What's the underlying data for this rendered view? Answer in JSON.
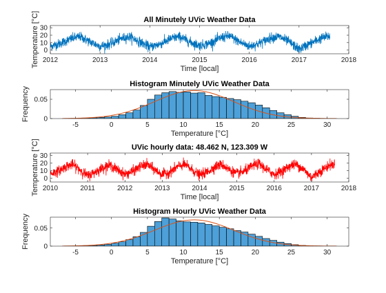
{
  "colors": {
    "minutely_line": "#0072BD",
    "hourly_line": "#FF0000",
    "histogram_bar": "#4DA0D8",
    "fit_curve": "#D95319",
    "axes": "#262626"
  },
  "chart_data": [
    {
      "type": "line",
      "title": "All Minutely UVic Weather Data",
      "xlabel": "Time [local]",
      "ylabel": "Temperature [°C]",
      "xlim": [
        2012,
        2018
      ],
      "ylim": [
        -5,
        33
      ],
      "xticks": [
        2012,
        2013,
        2014,
        2015,
        2016,
        2017,
        2018
      ],
      "yticks": [
        0,
        10,
        20,
        30
      ],
      "series": [
        {
          "color": "#0072BD",
          "x_start": 2012.0,
          "x_end": 2017.62,
          "seasonal_mean_points": [
            [
              2012.0,
              5
            ],
            [
              2012.2,
              9
            ],
            [
              2012.45,
              16
            ],
            [
              2012.6,
              18
            ],
            [
              2012.8,
              11
            ],
            [
              2013.0,
              5
            ],
            [
              2013.2,
              8
            ],
            [
              2013.45,
              16
            ],
            [
              2013.6,
              18
            ],
            [
              2013.8,
              11
            ],
            [
              2014.0,
              4
            ],
            [
              2014.2,
              8
            ],
            [
              2014.45,
              16
            ],
            [
              2014.6,
              18
            ],
            [
              2014.8,
              11
            ],
            [
              2015.0,
              6
            ],
            [
              2015.2,
              9
            ],
            [
              2015.45,
              17
            ],
            [
              2015.6,
              19
            ],
            [
              2015.8,
              11
            ],
            [
              2016.0,
              5
            ],
            [
              2016.2,
              9
            ],
            [
              2016.45,
              17
            ],
            [
              2016.6,
              18
            ],
            [
              2016.8,
              11
            ],
            [
              2017.0,
              1
            ],
            [
              2017.2,
              8
            ],
            [
              2017.45,
              16
            ],
            [
              2017.62,
              19
            ]
          ],
          "approx_min": -5,
          "approx_max": 32
        }
      ]
    },
    {
      "type": "bar",
      "title": "Histogram Minutely UVic Weather Data",
      "xlabel": "Temperature [°C]",
      "ylabel": "Frequency",
      "xlim": [
        -8.5,
        33
      ],
      "ylim": [
        0,
        0.075
      ],
      "xticks": [
        -5,
        0,
        5,
        10,
        15,
        20,
        25,
        30
      ],
      "yticks": [
        0,
        0.05
      ],
      "bin_width": 1,
      "bins": [
        -6,
        -5,
        -4,
        -3,
        -2,
        -1,
        0,
        1,
        2,
        3,
        4,
        5,
        6,
        7,
        8,
        9,
        10,
        11,
        12,
        13,
        14,
        15,
        16,
        17,
        18,
        19,
        20,
        21,
        22,
        23,
        24,
        25,
        26,
        27,
        28,
        29,
        30
      ],
      "values": [
        0.0005,
        0.001,
        0.0015,
        0.002,
        0.003,
        0.004,
        0.006,
        0.01,
        0.015,
        0.022,
        0.034,
        0.05,
        0.061,
        0.067,
        0.07,
        0.068,
        0.069,
        0.066,
        0.067,
        0.06,
        0.057,
        0.055,
        0.052,
        0.049,
        0.045,
        0.041,
        0.035,
        0.028,
        0.021,
        0.015,
        0.01,
        0.006,
        0.003,
        0.0015,
        0.0008,
        0.0004,
        0.0002
      ],
      "fit": {
        "type": "normal",
        "mean": 11.5,
        "std": 5.5,
        "color": "#D95319"
      }
    },
    {
      "type": "line",
      "title": "UVic hourly data: 48.462 N, 123.309 W",
      "xlabel": "Time [local]",
      "ylabel": "Temperature [°C]",
      "xlim": [
        2010,
        2018
      ],
      "ylim": [
        -5,
        33
      ],
      "xticks": [
        2010,
        2011,
        2012,
        2013,
        2014,
        2015,
        2016,
        2017,
        2018
      ],
      "yticks": [
        0,
        10,
        20,
        30
      ],
      "series": [
        {
          "color": "#FF0000",
          "x_start": 2010.0,
          "x_end": 2017.62,
          "seasonal_mean_points": [
            [
              2010.0,
              6
            ],
            [
              2010.2,
              9
            ],
            [
              2010.45,
              16
            ],
            [
              2010.6,
              18
            ],
            [
              2010.8,
              11
            ],
            [
              2011.0,
              3
            ],
            [
              2011.2,
              8
            ],
            [
              2011.45,
              15
            ],
            [
              2011.6,
              17
            ],
            [
              2011.8,
              11
            ],
            [
              2012.0,
              5
            ],
            [
              2012.2,
              9
            ],
            [
              2012.45,
              16
            ],
            [
              2012.6,
              18
            ],
            [
              2012.8,
              11
            ],
            [
              2013.0,
              5
            ],
            [
              2013.2,
              8
            ],
            [
              2013.45,
              16
            ],
            [
              2013.6,
              18
            ],
            [
              2013.8,
              11
            ],
            [
              2014.0,
              4
            ],
            [
              2014.2,
              8
            ],
            [
              2014.45,
              16
            ],
            [
              2014.6,
              18
            ],
            [
              2014.8,
              11
            ],
            [
              2015.0,
              6
            ],
            [
              2015.2,
              9
            ],
            [
              2015.45,
              17
            ],
            [
              2015.6,
              19
            ],
            [
              2015.8,
              11
            ],
            [
              2016.0,
              5
            ],
            [
              2016.2,
              9
            ],
            [
              2016.45,
              17
            ],
            [
              2016.6,
              18
            ],
            [
              2016.8,
              11
            ],
            [
              2017.0,
              1
            ],
            [
              2017.2,
              8
            ],
            [
              2017.45,
              16
            ],
            [
              2017.62,
              19
            ]
          ],
          "approx_min": -5,
          "approx_max": 32
        }
      ]
    },
    {
      "type": "bar",
      "title": "Histogram Hourly UVic Weather Data",
      "xlabel": "Temperature [°C]",
      "ylabel": "Frequency",
      "xlim": [
        -8.5,
        33
      ],
      "ylim": [
        0,
        0.08
      ],
      "xticks": [
        -5,
        0,
        5,
        10,
        15,
        20,
        25,
        30
      ],
      "yticks": [
        0,
        0.05
      ],
      "bin_width": 1,
      "bins": [
        -6,
        -5,
        -4,
        -3,
        -2,
        -1,
        0,
        1,
        2,
        3,
        4,
        5,
        6,
        7,
        8,
        9,
        10,
        11,
        12,
        13,
        14,
        15,
        16,
        17,
        18,
        19,
        20,
        21,
        22,
        23,
        24,
        25,
        26,
        27,
        28,
        29,
        30
      ],
      "values": [
        0.0005,
        0.001,
        0.0015,
        0.002,
        0.003,
        0.005,
        0.008,
        0.012,
        0.018,
        0.026,
        0.038,
        0.055,
        0.068,
        0.078,
        0.075,
        0.07,
        0.067,
        0.066,
        0.064,
        0.06,
        0.056,
        0.052,
        0.048,
        0.043,
        0.039,
        0.033,
        0.027,
        0.021,
        0.016,
        0.011,
        0.007,
        0.004,
        0.002,
        0.001,
        0.0006,
        0.0003,
        0.0002
      ],
      "fit": {
        "type": "normal",
        "mean": 11.5,
        "std": 5.5,
        "color": "#D95319"
      }
    }
  ]
}
